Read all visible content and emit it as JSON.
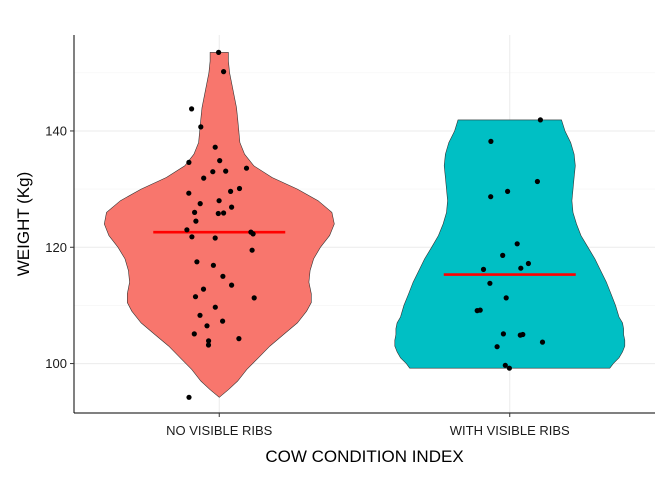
{
  "chart_data": {
    "type": "violin",
    "xlabel": "COW CONDITION INDEX",
    "ylabel": "WEIGHT (Kg)",
    "categories": [
      "NO VISIBLE RIBS",
      "WITH VISIBLE RIBS"
    ],
    "ylim": [
      91.5,
      156.5
    ],
    "y_ticks": [
      100,
      120,
      140
    ],
    "grid": true,
    "legend": "none",
    "series": [
      {
        "category": "NO VISIBLE RIBS",
        "color": "#F8766D",
        "mean": 122.6,
        "min": 94.2,
        "max": 153.5,
        "density_profile": [
          [
            94.2,
            0.0
          ],
          [
            95.5,
            0.08
          ],
          [
            97.0,
            0.16
          ],
          [
            99.0,
            0.24
          ],
          [
            101.0,
            0.34
          ],
          [
            103.0,
            0.44
          ],
          [
            105.0,
            0.56
          ],
          [
            107.0,
            0.68
          ],
          [
            109.0,
            0.76
          ],
          [
            110.5,
            0.8
          ],
          [
            112.0,
            0.8
          ],
          [
            114.0,
            0.78
          ],
          [
            116.0,
            0.79
          ],
          [
            118.0,
            0.82
          ],
          [
            120.0,
            0.88
          ],
          [
            122.0,
            0.96
          ],
          [
            124.0,
            1.0
          ],
          [
            126.0,
            0.98
          ],
          [
            128.0,
            0.86
          ],
          [
            130.0,
            0.68
          ],
          [
            132.0,
            0.46
          ],
          [
            134.0,
            0.3
          ],
          [
            136.0,
            0.22
          ],
          [
            138.0,
            0.18
          ],
          [
            140.0,
            0.17
          ],
          [
            142.0,
            0.16
          ],
          [
            144.0,
            0.15
          ],
          [
            146.0,
            0.13
          ],
          [
            148.0,
            0.11
          ],
          [
            150.0,
            0.09
          ],
          [
            152.0,
            0.08
          ],
          [
            153.5,
            0.08
          ]
        ],
        "points": [
          153.5,
          150.2,
          143.8,
          140.7,
          137.2,
          134.9,
          134.6,
          133.6,
          133.1,
          133.0,
          131.9,
          130.1,
          129.6,
          129.3,
          128.0,
          127.5,
          126.9,
          126.0,
          125.9,
          125.8,
          124.5,
          123.0,
          122.6,
          122.3,
          121.8,
          121.6,
          119.5,
          117.5,
          116.9,
          115.0,
          113.5,
          112.8,
          111.5,
          111.3,
          109.7,
          108.3,
          107.3,
          106.5,
          105.1,
          104.3,
          103.9,
          103.2,
          94.2
        ]
      },
      {
        "category": "WITH VISIBLE RIBS",
        "color": "#00BFC4",
        "mean": 115.3,
        "min": 99.2,
        "max": 141.9,
        "density_profile": [
          [
            99.2,
            0.87
          ],
          [
            100.0,
            0.9
          ],
          [
            101.0,
            0.95
          ],
          [
            102.0,
            0.98
          ],
          [
            103.0,
            1.0
          ],
          [
            104.0,
            1.0
          ],
          [
            105.0,
            0.99
          ],
          [
            106.0,
            0.99
          ],
          [
            107.0,
            0.98
          ],
          [
            108.0,
            0.95
          ],
          [
            110.0,
            0.92
          ],
          [
            112.0,
            0.88
          ],
          [
            114.0,
            0.84
          ],
          [
            116.0,
            0.79
          ],
          [
            118.0,
            0.74
          ],
          [
            120.0,
            0.68
          ],
          [
            122.0,
            0.62
          ],
          [
            124.0,
            0.58
          ],
          [
            126.0,
            0.55
          ],
          [
            128.0,
            0.54
          ],
          [
            130.0,
            0.55
          ],
          [
            132.0,
            0.56
          ],
          [
            134.0,
            0.57
          ],
          [
            136.0,
            0.56
          ],
          [
            138.0,
            0.53
          ],
          [
            140.0,
            0.48
          ],
          [
            141.9,
            0.45
          ]
        ],
        "points": [
          141.9,
          138.2,
          131.3,
          129.6,
          128.7,
          120.6,
          118.6,
          117.2,
          116.4,
          116.2,
          113.8,
          111.3,
          109.2,
          109.1,
          105.1,
          105.0,
          104.9,
          103.7,
          102.9,
          99.7,
          99.2
        ]
      }
    ]
  }
}
